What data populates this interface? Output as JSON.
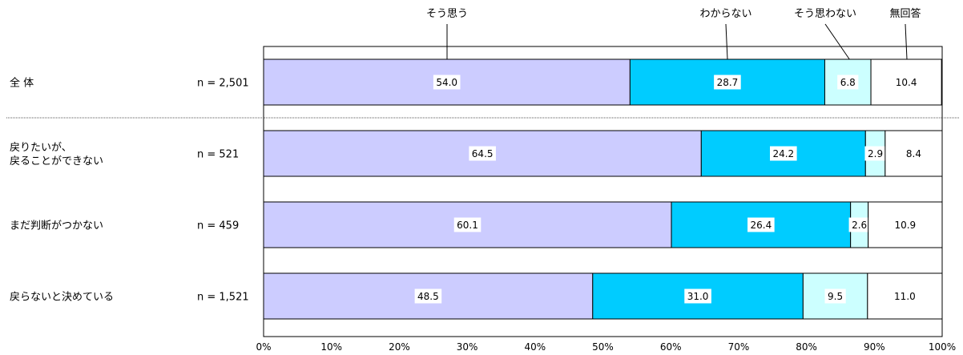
{
  "chart_data": {
    "type": "bar",
    "orientation": "horizontal",
    "stacked": true,
    "percent": true,
    "categories": [
      "全 体",
      "戻りたいが、\n戻ることができない",
      "まだ判断がつかない",
      "戻らないと決めている"
    ],
    "n_labels": [
      "n = 2,501",
      "n = 521",
      "n = 459",
      "n = 1,521"
    ],
    "series": [
      {
        "name": "そう思う",
        "color": "#ccccff",
        "values": [
          54.0,
          64.5,
          60.1,
          48.5
        ]
      },
      {
        "name": "わからない",
        "color": "#00ccff",
        "values": [
          28.7,
          24.2,
          26.4,
          31.0
        ]
      },
      {
        "name": "そう思わない",
        "color": "#ccffff",
        "values": [
          6.8,
          2.9,
          2.6,
          9.5
        ]
      },
      {
        "name": "無回答",
        "color": "#ffffff",
        "values": [
          10.4,
          8.4,
          10.9,
          11.0
        ]
      }
    ],
    "value_labels": [
      [
        "54.0",
        "28.7",
        "6.8",
        "10.4"
      ],
      [
        "64.5",
        "24.2",
        "2.9",
        "8.4"
      ],
      [
        "60.1",
        "26.4",
        "2.6",
        "10.9"
      ],
      [
        "48.5",
        "31.0",
        "9.5",
        "11.0"
      ]
    ],
    "x_ticks": [
      "0%",
      "10%",
      "20%",
      "30%",
      "40%",
      "50%",
      "60%",
      "70%",
      "80%",
      "90%",
      "100%"
    ],
    "xlim": [
      0,
      100
    ],
    "legend_position": "top",
    "separator_after_first_row": true
  }
}
